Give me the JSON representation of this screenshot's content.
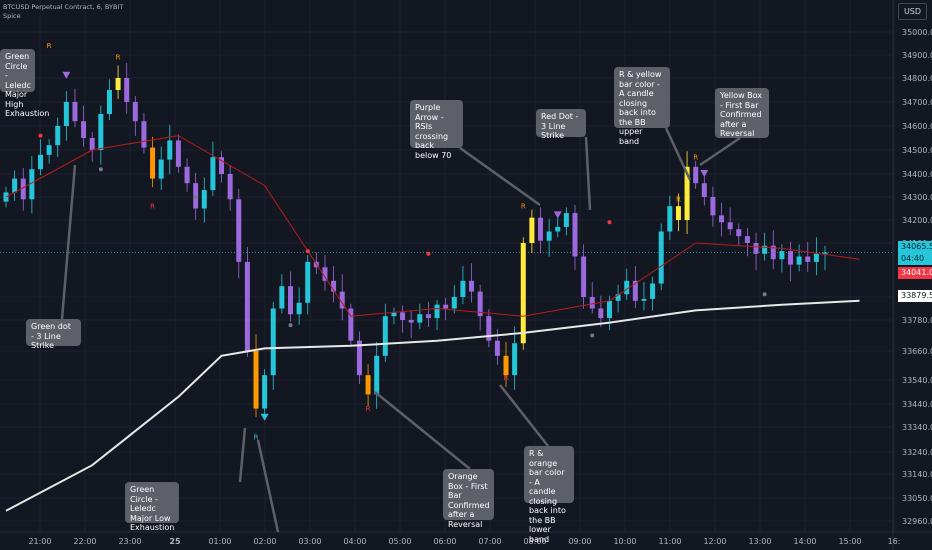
{
  "header": {
    "symbol_line": "BTCUSD Perpetual Contract, 6, BYBIT",
    "indicator": "Spice"
  },
  "currency_button": "USD",
  "price_tags": {
    "current_price": "34065.5",
    "countdown": "04:40",
    "red_level": "34041.0",
    "white_level": "33879.5"
  },
  "callouts": [
    {
      "key": "top-left",
      "text": "Green Circle - Leledc  Major High Exhaustion"
    },
    {
      "key": "green-dot",
      "text": "Green dot - 3 Line Strike"
    },
    {
      "key": "green-circle-low",
      "text": "Green Circle - Leledc Major Low Exhaustion"
    },
    {
      "key": "purple-arrow",
      "text": "Purple Arrow - RSIs crossing back below 70"
    },
    {
      "key": "red-dot",
      "text": "Red Dot - 3 Line Strike"
    },
    {
      "key": "orange-box",
      "text": "Orange Box - First Bar Confirmed after a Reversal"
    },
    {
      "key": "r-orange",
      "text": "R & orange bar color - A candle closing back into the BB lower band"
    },
    {
      "key": "r-yellow",
      "text": "R & yellow bar color - A candle closing back into the BB upper band"
    },
    {
      "key": "yellow-box",
      "text": "Yellow Box - First Bar Confirmed after a Reversal"
    }
  ],
  "chart_data": {
    "type": "candlestick",
    "title": "BTCUSD Perpetual Contract, 6, BYBIT",
    "ylim": [
      32930,
      35080
    ],
    "y_ticks": [
      32960,
      33050,
      33140,
      33240,
      33340,
      33440,
      33540,
      33660,
      33780,
      33900,
      34100,
      34200,
      34300,
      34400,
      34500,
      34600,
      34700,
      34800,
      34900,
      35000
    ],
    "y_tick_labels": [
      "32960.0",
      "33050.0",
      "33140.0",
      "33240.0",
      "33340.0",
      "33440.0",
      "33540.0",
      "33660.0",
      "33780.0",
      "33900.0",
      "34100.0",
      "34200.0",
      "34300.0",
      "34400.0",
      "34500.0",
      "34600.0",
      "34700.0",
      "34800.0",
      "34900.0",
      "35000.0"
    ],
    "x_ticks": [
      "21:00",
      "22:00",
      "23:00",
      "25",
      "01:00",
      "02:00",
      "03:00",
      "04:00",
      "05:00",
      "06:00",
      "07:00",
      "08:00",
      "09:00",
      "10:00",
      "11:00",
      "12:00",
      "13:00",
      "14:00",
      "15:00",
      "16:"
    ],
    "series_close": [
      34320,
      34380,
      34290,
      34420,
      34480,
      34520,
      34600,
      34700,
      34620,
      34550,
      34500,
      34650,
      34750,
      34800,
      34700,
      34620,
      34510,
      34380,
      34460,
      34540,
      34430,
      34360,
      34250,
      34330,
      34470,
      34400,
      34290,
      34030,
      33660,
      33420,
      33560,
      33840,
      33940,
      33810,
      33870,
      34030,
      34010,
      33960,
      33920,
      33840,
      33700,
      33560,
      33480,
      33640,
      33800,
      33820,
      33780,
      33770,
      33810,
      33790,
      33860,
      33840,
      33900,
      33960,
      33920,
      33800,
      33700,
      33640,
      33560,
      33690,
      34100,
      34210,
      34110,
      34150,
      34170,
      34230,
      34050,
      33900,
      33840,
      33790,
      33880,
      33910,
      33960,
      33880,
      33890,
      33950,
      34150,
      34260,
      34200,
      34430,
      34360,
      34300,
      34220,
      34190,
      34160,
      34130,
      34100,
      34060,
      34090,
      34040,
      34070,
      34020,
      34050,
      34030,
      34060,
      34065
    ],
    "bb_basis_points": [
      [
        0,
        34300
      ],
      [
        10,
        34500
      ],
      [
        20,
        34560
      ],
      [
        30,
        34350
      ],
      [
        40,
        33800
      ],
      [
        50,
        33840
      ],
      [
        60,
        33800
      ],
      [
        70,
        33880
      ],
      [
        80,
        34100
      ],
      [
        90,
        34080
      ],
      [
        99,
        34040
      ]
    ],
    "ma_points": [
      [
        0,
        33000
      ],
      [
        10,
        33180
      ],
      [
        20,
        33470
      ],
      [
        25,
        33640
      ],
      [
        30,
        33670
      ],
      [
        40,
        33680
      ],
      [
        50,
        33700
      ],
      [
        60,
        33730
      ],
      [
        70,
        33770
      ],
      [
        80,
        33830
      ],
      [
        90,
        33860
      ],
      [
        99,
        33880
      ]
    ],
    "ma_label": "33879.5",
    "bb_label": "34041.0",
    "last_price": "34065.5"
  }
}
